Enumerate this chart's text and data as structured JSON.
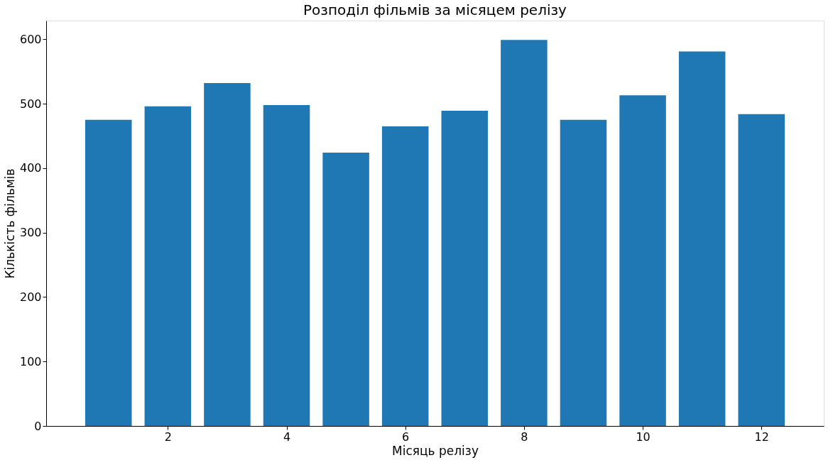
{
  "chart_data": {
    "type": "bar",
    "title": "Розподіл фільмів за місяцем релізу",
    "xlabel": "Місяць релізу",
    "ylabel": "Кількість фільмів",
    "x": [
      1,
      2,
      3,
      4,
      5,
      6,
      7,
      8,
      9,
      10,
      11,
      12
    ],
    "values": [
      475,
      496,
      532,
      498,
      424,
      465,
      489,
      599,
      475,
      513,
      581,
      484
    ],
    "color": "#1f77b4",
    "xlim": [
      0.01,
      12.99
    ],
    "xticks": [
      2,
      4,
      6,
      8,
      10,
      12
    ],
    "ylim": [
      0,
      629
    ],
    "yticks": [
      0,
      100,
      200,
      300,
      400,
      500,
      600
    ],
    "grid": false
  }
}
